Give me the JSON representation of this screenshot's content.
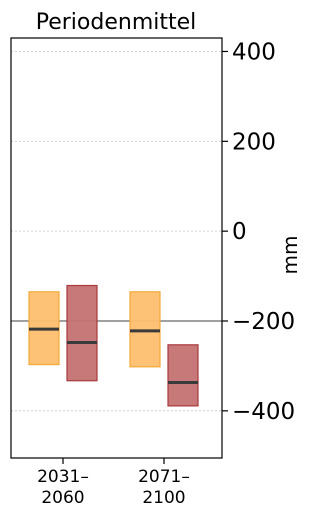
{
  "chart_data": {
    "type": "bar",
    "title": "Periodenmittel",
    "xlabel": "",
    "ylabel": "mm",
    "ylim": [
      -505,
      430
    ],
    "yticks": [
      400,
      200,
      0,
      -200,
      -400
    ],
    "ytick_labels": [
      "400",
      "200",
      "0",
      "−200",
      "−400"
    ],
    "grid": true,
    "reference_line": -200,
    "categories": [
      {
        "label_line1": "2031–",
        "label_line2": "2060"
      },
      {
        "label_line1": "2071–",
        "label_line2": "2100"
      }
    ],
    "series": [
      {
        "fill": "#fdbf6f",
        "stroke": "#f4a83a",
        "ranges": [
          {
            "low": -297,
            "high": -135,
            "median": -218
          },
          {
            "low": -302,
            "high": -135,
            "median": -222
          }
        ]
      },
      {
        "fill": "#c47172",
        "stroke": "#a83a3c",
        "ranges": [
          {
            "low": -333,
            "high": -121,
            "median": -248
          },
          {
            "low": -389,
            "high": -253,
            "median": -337
          }
        ]
      }
    ],
    "colors": {
      "median": "#3a3a3a",
      "reference_line": "#808080",
      "grid": "#c8c8c8",
      "axis": "#000000"
    }
  }
}
